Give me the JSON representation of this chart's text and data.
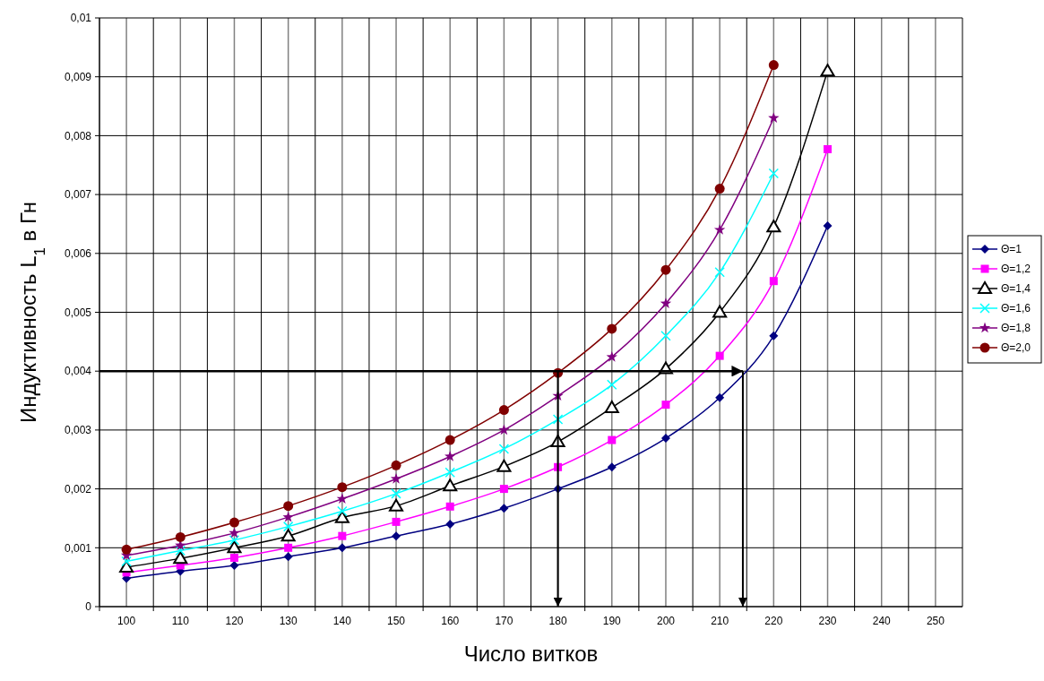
{
  "chart_data": {
    "type": "line",
    "xlabel": "Число витков",
    "ylabel": "Индуктивность L$_{1}$ в Гн",
    "categories": [
      "100",
      "110",
      "120",
      "130",
      "140",
      "150",
      "160",
      "170",
      "180",
      "190",
      "200",
      "210",
      "220",
      "230",
      "240",
      "250"
    ],
    "ylim": [
      0,
      0.01
    ],
    "yticks": [
      {
        "value": 0,
        "label": "0"
      },
      {
        "value": 0.001,
        "label": "0,001"
      },
      {
        "value": 0.002,
        "label": "0,002"
      },
      {
        "value": 0.003,
        "label": "0,003"
      },
      {
        "value": 0.004,
        "label": "0,004"
      },
      {
        "value": 0.005,
        "label": "0,005"
      },
      {
        "value": 0.006,
        "label": "0,006"
      },
      {
        "value": 0.007,
        "label": "0,007"
      },
      {
        "value": 0.008,
        "label": "0,008"
      },
      {
        "value": 0.009,
        "label": "0,009"
      },
      {
        "value": 0.01,
        "label": "0,01"
      }
    ],
    "grid": true,
    "legend": "right",
    "series": [
      {
        "name": "Θ=1",
        "color": "#000080",
        "marker": "diamond",
        "values": [
          0.00048,
          0.0006,
          0.0007,
          0.00085,
          0.001,
          0.0012,
          0.0014,
          0.00167,
          0.002,
          0.00237,
          0.00286,
          0.00355,
          0.0046,
          0.00647,
          null,
          null
        ]
      },
      {
        "name": "Θ=1,2",
        "color": "#ff00ff",
        "marker": "square",
        "values": [
          0.00058,
          0.0007,
          0.00083,
          0.001,
          0.0012,
          0.00144,
          0.0017,
          0.002,
          0.00237,
          0.00283,
          0.00343,
          0.00426,
          0.00553,
          0.00777,
          null,
          null
        ]
      },
      {
        "name": "Θ=1,4",
        "color": "#000000",
        "marker": "triangle",
        "values": [
          0.00067,
          0.00082,
          0.001,
          0.0012,
          0.00151,
          0.00171,
          0.00205,
          0.00238,
          0.0028,
          0.00338,
          0.00404,
          0.005,
          0.00645,
          0.0091,
          null,
          null
        ]
      },
      {
        "name": "Θ=1,6",
        "color": "#00ffff",
        "marker": "cross",
        "values": [
          0.00077,
          0.00095,
          0.00113,
          0.00136,
          0.00162,
          0.00192,
          0.00228,
          0.00268,
          0.00318,
          0.00377,
          0.0046,
          0.00568,
          0.00736,
          null,
          null,
          null
        ]
      },
      {
        "name": "Θ=1,8",
        "color": "#800080",
        "marker": "star",
        "values": [
          0.00087,
          0.00104,
          0.00125,
          0.00152,
          0.00183,
          0.00217,
          0.00255,
          0.003,
          0.00358,
          0.00424,
          0.00515,
          0.0064,
          0.0083,
          null,
          null,
          null
        ]
      },
      {
        "name": "Θ=2,0",
        "color": "#800000",
        "marker": "circle",
        "values": [
          0.00097,
          0.00118,
          0.00143,
          0.00171,
          0.00203,
          0.0024,
          0.00283,
          0.00334,
          0.00397,
          0.00472,
          0.00572,
          0.0071,
          0.0092,
          null,
          null,
          null
        ]
      }
    ],
    "ref_lines": [
      {
        "axis": "y",
        "value": 0.004,
        "color": "#000000"
      },
      {
        "axis": "x",
        "value": "180",
        "color": "#000000"
      }
    ]
  }
}
